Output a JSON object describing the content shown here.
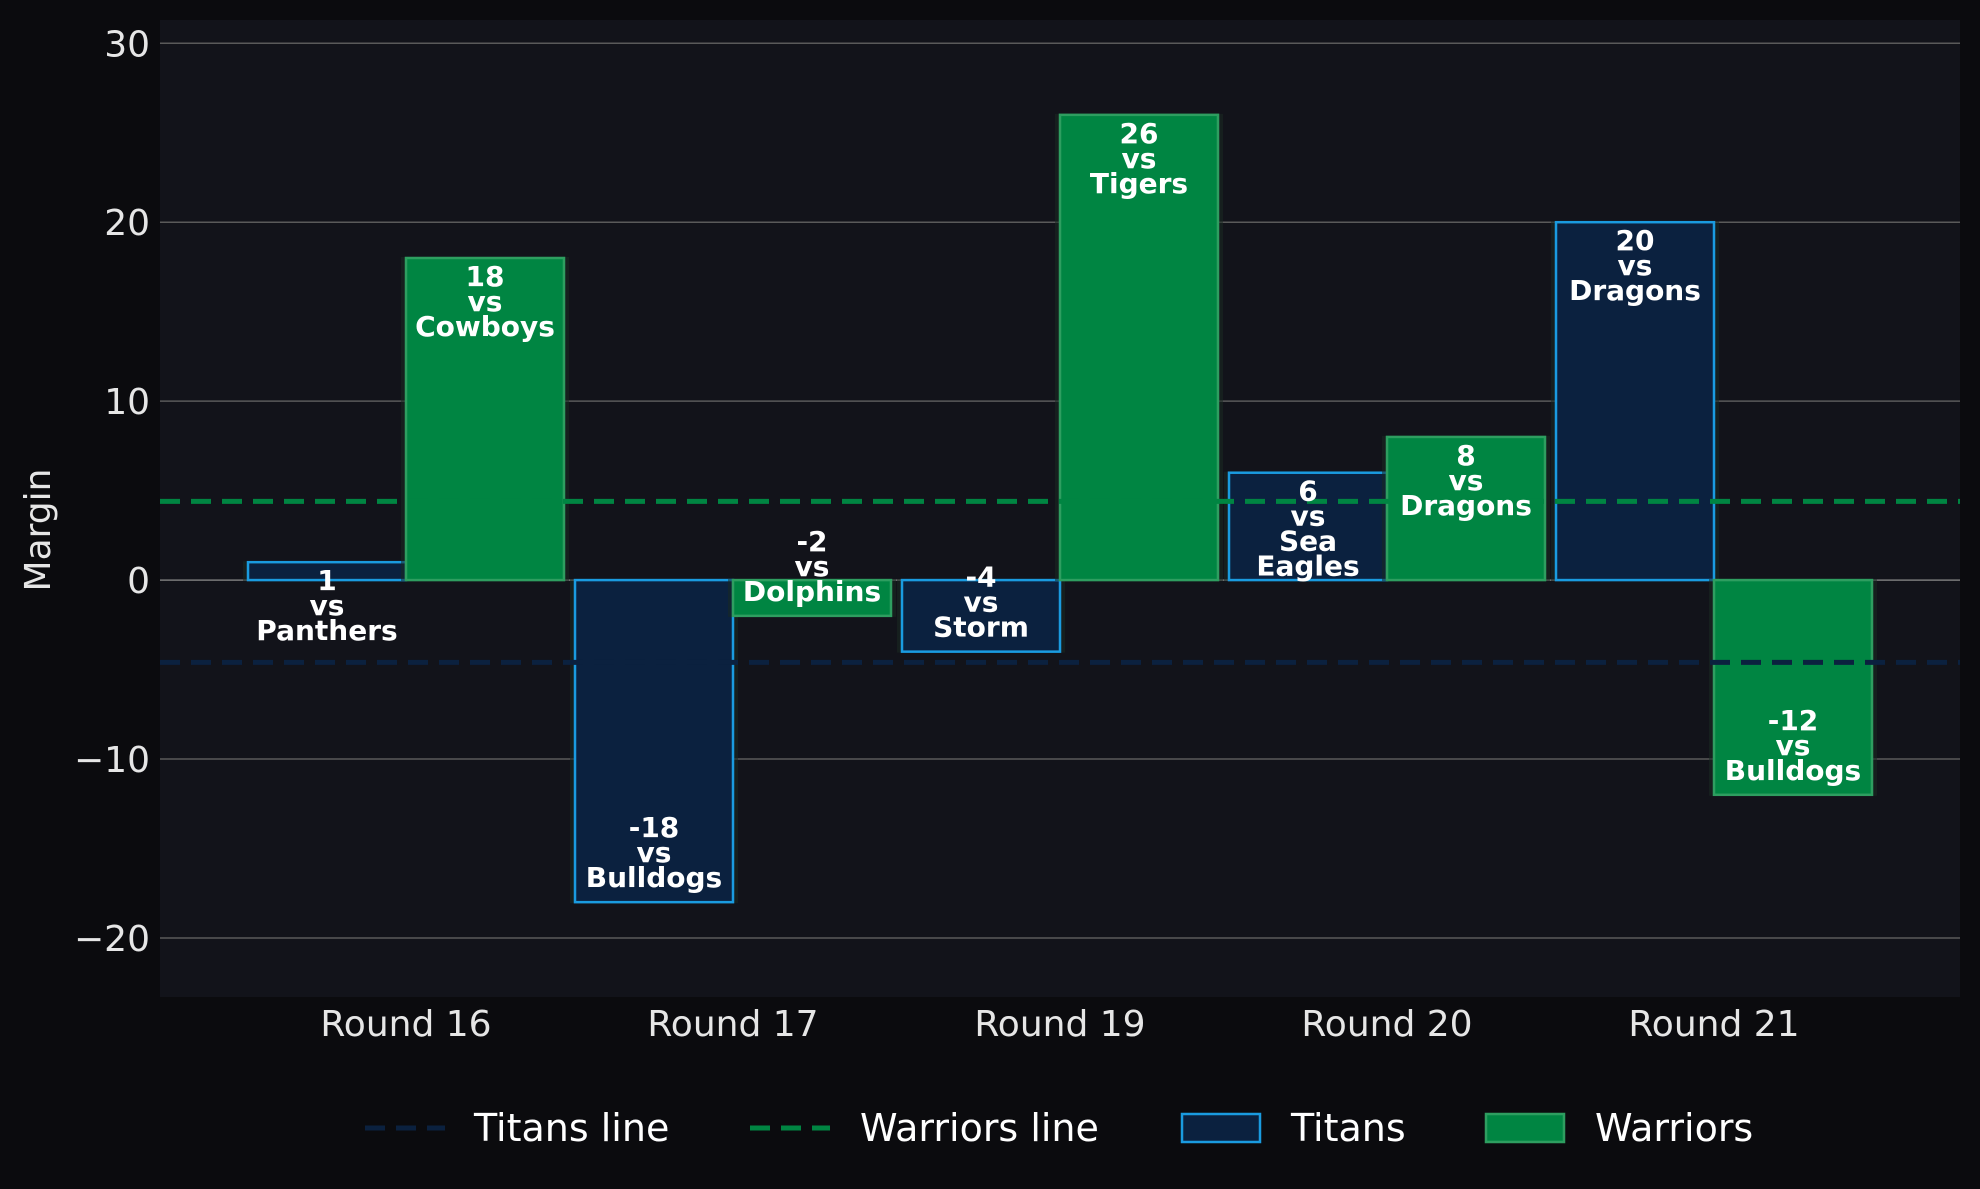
{
  "chart_data": {
    "type": "bar",
    "categories": [
      "Round 16",
      "Round 17",
      "Round 19",
      "Round 20",
      "Round 21"
    ],
    "series": [
      {
        "name": "Titans",
        "values": [
          1,
          -18,
          -4,
          6,
          20
        ],
        "opponents": [
          "Panthers",
          "Bulldogs",
          "Storm",
          "Sea Eagles",
          "Dragons"
        ],
        "fill": "#0b213f",
        "stroke": "#1a9be0"
      },
      {
        "name": "Warriors",
        "values": [
          18,
          -2,
          26,
          8,
          -12
        ],
        "opponents": [
          "Cowboys",
          "Dolphins",
          "Tigers",
          "Dragons",
          "Bulldogs"
        ],
        "fill": "#008542",
        "stroke": "#2e9e60"
      }
    ],
    "reference_lines": [
      {
        "name": "Titans line",
        "value": -4.6,
        "color": "#0b213f"
      },
      {
        "name": "Warriors line",
        "value": 4.4,
        "color": "#008542"
      }
    ],
    "ylabel": "Margin",
    "xlabel": "",
    "title": "",
    "ylim": [
      -23.3,
      31.3
    ],
    "yticks": [
      -20,
      -10,
      0,
      10,
      20,
      30
    ],
    "ytick_labels": [
      "−20",
      "−10",
      "0",
      "10",
      "20",
      "30"
    ],
    "label_connector": "vs",
    "grid": true,
    "legend_position": "bottom",
    "legend": [
      "Titans line",
      "Warriors line",
      "Titans",
      "Warriors"
    ],
    "colors": {
      "background": "#0b0b0e",
      "plot_background": "#12131a",
      "grid": "#5a5a5a",
      "zero_line": "#7a7a7a"
    }
  }
}
